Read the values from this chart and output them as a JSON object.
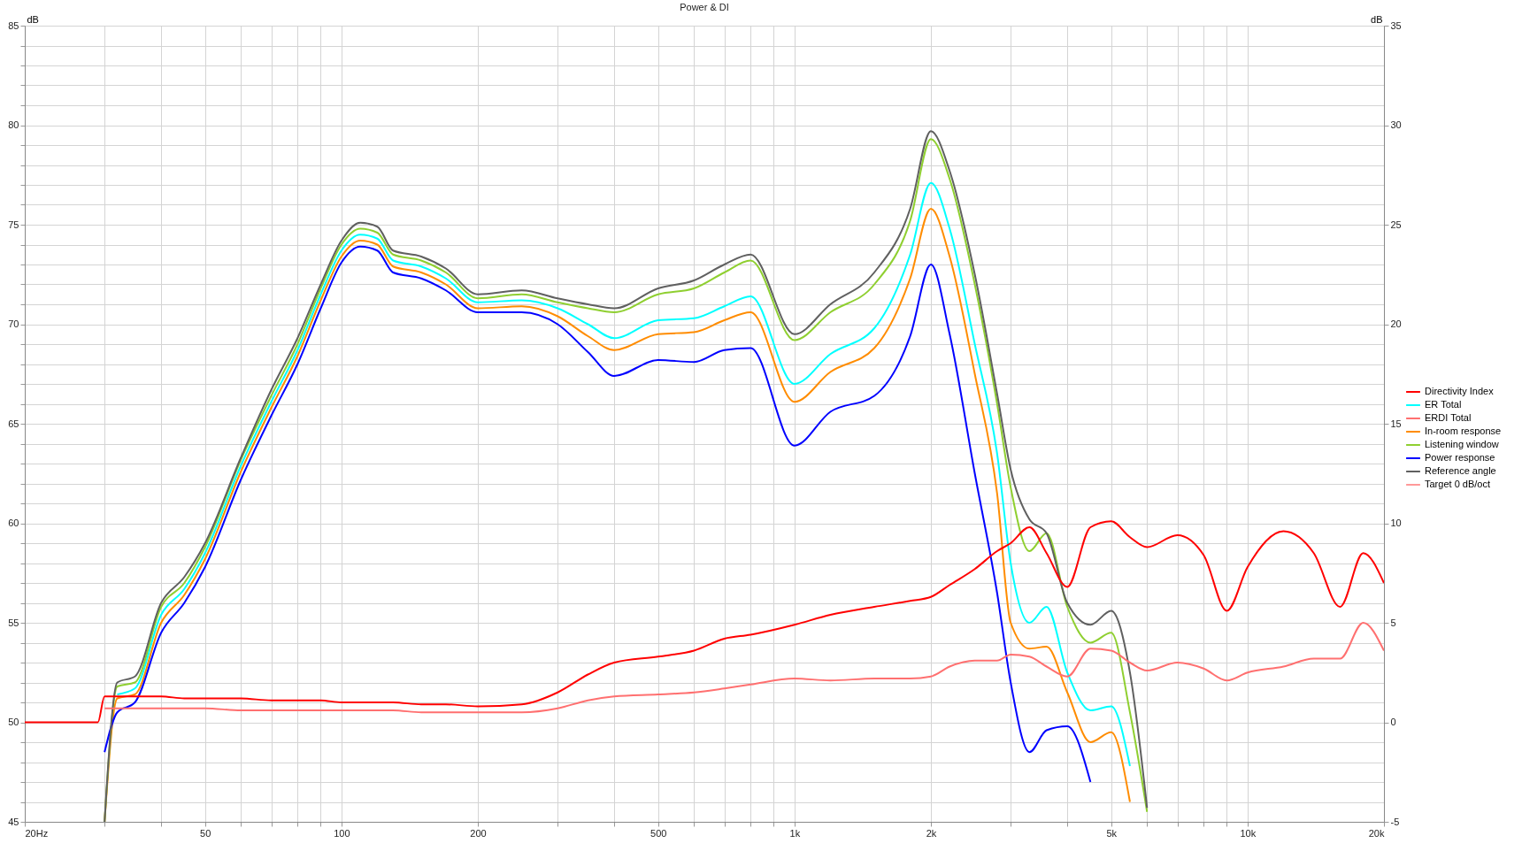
{
  "chart_data": {
    "type": "line",
    "title": "Power & DI",
    "ylabel": "dB",
    "y2label": "dB",
    "log": "x",
    "grid": true,
    "legend": "right",
    "xlim": [
      20,
      20000
    ],
    "ylim": [
      45,
      85
    ],
    "y2lim": [
      -5,
      35
    ],
    "xticks": [
      {
        "value": 20,
        "label": "20Hz"
      },
      {
        "value": 30,
        "label": null
      },
      {
        "value": 40,
        "label": null
      },
      50,
      {
        "value": 60,
        "label": null
      },
      {
        "value": 70,
        "label": null
      },
      {
        "value": 80,
        "label": null
      },
      {
        "value": 90,
        "label": null
      },
      100,
      200,
      {
        "value": 300,
        "label": null
      },
      {
        "value": 400,
        "label": null
      },
      500,
      {
        "value": 600,
        "label": null
      },
      {
        "value": 700,
        "label": null
      },
      {
        "value": 800,
        "label": null
      },
      {
        "value": 900,
        "label": null
      },
      {
        "value": 1000,
        "label": "1k"
      },
      {
        "value": 2000,
        "label": "2k"
      },
      {
        "value": 3000,
        "label": null
      },
      {
        "value": 4000,
        "label": null
      },
      {
        "value": 5000,
        "label": "5k"
      },
      {
        "value": 6000,
        "label": null
      },
      {
        "value": 7000,
        "label": null
      },
      {
        "value": 8000,
        "label": null
      },
      {
        "value": 9000,
        "label": null
      },
      {
        "value": 10000,
        "label": "10k"
      },
      {
        "value": 20000,
        "label": "20k"
      }
    ],
    "yticks": [
      45,
      {
        "value": 46,
        "label": null
      },
      {
        "value": 47,
        "label": null
      },
      {
        "value": 48,
        "label": null
      },
      {
        "value": 49,
        "label": null
      },
      50,
      {
        "value": 51,
        "label": null
      },
      {
        "value": 52,
        "label": null
      },
      {
        "value": 53,
        "label": null
      },
      {
        "value": 54,
        "label": null
      },
      55,
      {
        "value": 56,
        "label": null
      },
      {
        "value": 57,
        "label": null
      },
      {
        "value": 58,
        "label": null
      },
      {
        "value": 59,
        "label": null
      },
      60,
      {
        "value": 61,
        "label": null
      },
      {
        "value": 62,
        "label": null
      },
      {
        "value": 63,
        "label": null
      },
      {
        "value": 64,
        "label": null
      },
      65,
      {
        "value": 66,
        "label": null
      },
      {
        "value": 67,
        "label": null
      },
      {
        "value": 68,
        "label": null
      },
      {
        "value": 69,
        "label": null
      },
      70,
      {
        "value": 71,
        "label": null
      },
      {
        "value": 72,
        "label": null
      },
      {
        "value": 73,
        "label": null
      },
      {
        "value": 74,
        "label": null
      },
      75,
      {
        "value": 76,
        "label": null
      },
      {
        "value": 77,
        "label": null
      },
      {
        "value": 78,
        "label": null
      },
      {
        "value": 79,
        "label": null
      },
      80,
      {
        "value": 81,
        "label": null
      },
      {
        "value": 82,
        "label": null
      },
      {
        "value": 83,
        "label": null
      },
      {
        "value": 84,
        "label": null
      },
      85
    ],
    "y2ticks": [
      -5,
      0,
      5,
      10,
      15,
      20,
      25,
      30,
      35
    ],
    "x": [
      20,
      29,
      30,
      32,
      35,
      40,
      45,
      50,
      60,
      70,
      80,
      90,
      100,
      110,
      120,
      130,
      150,
      170,
      200,
      250,
      300,
      350,
      400,
      500,
      600,
      700,
      800,
      1000,
      1200,
      1500,
      1800,
      2000,
      2200,
      2500,
      2800,
      3000,
      3300,
      3600,
      4000,
      4500,
      5000,
      5500,
      6000,
      7000,
      8000,
      9000,
      10000,
      12000,
      14000,
      16000,
      18000,
      20000
    ],
    "series": [
      {
        "name": "Directivity Index",
        "color": "#ff0000",
        "axis": "y2",
        "values": [
          0,
          0,
          1.3,
          1.3,
          1.3,
          1.3,
          1.2,
          1.2,
          1.2,
          1.1,
          1.1,
          1.1,
          1.0,
          1.0,
          1.0,
          1.0,
          0.9,
          0.9,
          0.8,
          0.9,
          1.5,
          2.4,
          3.0,
          3.3,
          3.6,
          4.2,
          4.4,
          4.9,
          5.4,
          5.8,
          6.1,
          6.3,
          6.9,
          7.7,
          8.6,
          9.0,
          9.8,
          8.5,
          6.8,
          9.8,
          10.1,
          9.3,
          8.8,
          9.4,
          8.4,
          5.6,
          7.8,
          9.6,
          8.5,
          5.8,
          8.5,
          7.0
        ]
      },
      {
        "name": "ER Total",
        "color": "#00ffff",
        "values": [
          null,
          null,
          null,
          51.4,
          51.7,
          55.4,
          56.7,
          58.5,
          62.9,
          66.1,
          68.7,
          71.5,
          73.7,
          74.5,
          74.3,
          73.2,
          72.9,
          72.3,
          71.1,
          71.2,
          70.8,
          70.0,
          69.3,
          70.2,
          70.3,
          70.9,
          71.4,
          67.0,
          68.5,
          69.8,
          73.5,
          77.1,
          74.8,
          69.0,
          63.5,
          58.0,
          55.0,
          55.8,
          52.5,
          50.6,
          50.8,
          47.8,
          null,
          null,
          null,
          null,
          null,
          null,
          null,
          null,
          null,
          null
        ]
      },
      {
        "name": "ERDI Total",
        "color": "#ff7070",
        "axis": "y2",
        "values": [
          null,
          null,
          0.7,
          0.7,
          0.7,
          0.7,
          0.7,
          0.7,
          0.6,
          0.6,
          0.6,
          0.6,
          0.6,
          0.6,
          0.6,
          0.6,
          0.5,
          0.5,
          0.5,
          0.5,
          0.7,
          1.1,
          1.3,
          1.4,
          1.5,
          1.7,
          1.9,
          2.2,
          2.1,
          2.2,
          2.2,
          2.3,
          2.8,
          3.1,
          3.1,
          3.4,
          3.3,
          2.8,
          2.3,
          3.7,
          3.6,
          3.0,
          2.6,
          3.0,
          2.7,
          2.1,
          2.5,
          2.8,
          3.2,
          3.2,
          5.0,
          3.6
        ]
      },
      {
        "name": "In-room response",
        "color": "#ff8c00",
        "values": [
          null,
          null,
          45,
          51.2,
          51.4,
          55.0,
          56.4,
          58.2,
          62.6,
          65.8,
          68.4,
          71.2,
          73.4,
          74.2,
          74.0,
          72.9,
          72.6,
          72.0,
          70.8,
          70.9,
          70.4,
          69.4,
          68.7,
          69.5,
          69.6,
          70.2,
          70.6,
          66.1,
          67.6,
          68.8,
          72.3,
          75.8,
          73.4,
          67.5,
          61.5,
          55.0,
          53.7,
          53.8,
          51.5,
          49.0,
          49.5,
          46.0,
          null,
          null,
          null,
          null,
          null,
          null,
          null,
          null,
          null,
          null
        ]
      },
      {
        "name": "Listening window",
        "color": "#8fcf30",
        "values": [
          null,
          null,
          45,
          51.8,
          52.0,
          55.8,
          57.0,
          58.8,
          63.2,
          66.4,
          69.0,
          71.8,
          74.0,
          74.8,
          74.6,
          73.5,
          73.2,
          72.6,
          71.3,
          71.5,
          71.1,
          70.8,
          70.6,
          71.5,
          71.8,
          72.6,
          73.2,
          69.2,
          70.6,
          72.0,
          75.2,
          79.3,
          77.3,
          72.0,
          66.0,
          61.8,
          58.6,
          59.5,
          55.8,
          54.0,
          54.5,
          50.5,
          45.5,
          null,
          null,
          null,
          null,
          null,
          null,
          null,
          null,
          null
        ]
      },
      {
        "name": "Power response",
        "color": "#0000ff",
        "values": [
          null,
          null,
          48.5,
          50.5,
          51.0,
          54.5,
          56.0,
          57.8,
          62.2,
          65.4,
          68.0,
          70.8,
          73.1,
          73.9,
          73.7,
          72.6,
          72.3,
          71.7,
          70.6,
          70.6,
          70.0,
          68.6,
          67.4,
          68.2,
          68.1,
          68.7,
          68.8,
          63.9,
          65.6,
          66.4,
          69.4,
          73.0,
          69.5,
          62.5,
          56.5,
          52.0,
          48.5,
          49.6,
          49.8,
          47.0,
          null,
          null,
          null,
          null,
          null,
          null,
          null,
          null,
          null,
          null,
          null,
          null
        ]
      },
      {
        "name": "Reference angle",
        "color": "#606060",
        "values": [
          null,
          null,
          45,
          52.0,
          52.3,
          56.0,
          57.3,
          59.0,
          63.3,
          66.7,
          69.3,
          72.0,
          74.2,
          75.1,
          74.9,
          73.7,
          73.4,
          72.8,
          71.5,
          71.7,
          71.3,
          71.0,
          70.8,
          71.8,
          72.2,
          73.0,
          73.5,
          69.5,
          71.0,
          72.6,
          75.8,
          79.7,
          77.7,
          72.5,
          66.5,
          62.7,
          60.2,
          59.5,
          56.0,
          54.9,
          55.6,
          52.5,
          45.7,
          null,
          null,
          null,
          null,
          null,
          null,
          null,
          null,
          null
        ]
      },
      {
        "name": "Target 0 dB/oct",
        "color": "#ff9999",
        "values": [
          null,
          null,
          null,
          null,
          null,
          null,
          null,
          null,
          null,
          null,
          null,
          null,
          null,
          null,
          null,
          null,
          null,
          null,
          null,
          null,
          null,
          null,
          null,
          null,
          null,
          null,
          null,
          null,
          null,
          null,
          null,
          null,
          null,
          null,
          null,
          null,
          null,
          null,
          null,
          null,
          null,
          null,
          null,
          null,
          null,
          null,
          null,
          null,
          null,
          null,
          null,
          null
        ]
      }
    ]
  }
}
